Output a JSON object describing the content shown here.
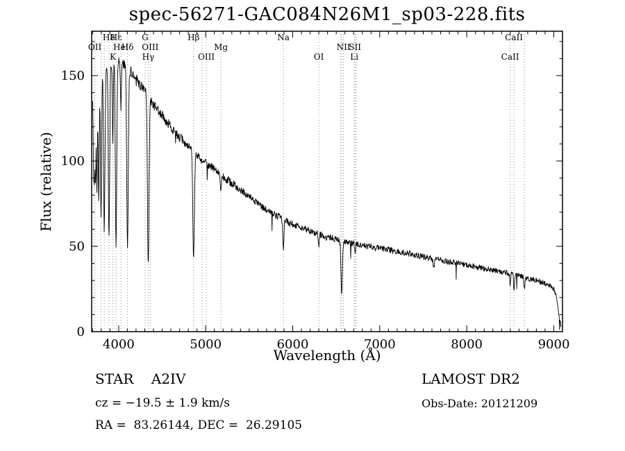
{
  "title": "spec-56271-GAC084N26M1_sp03-228.fits",
  "chart_data": {
    "type": "line",
    "title": "spec-56271-GAC084N26M1_sp03-228.fits",
    "xlabel": "Wavelength (Å)",
    "ylabel": "Flux (relative)",
    "xlim": [
      3690,
      9100
    ],
    "ylim": [
      0,
      176
    ],
    "xticks": [
      4000,
      5000,
      6000,
      7000,
      8000,
      9000
    ],
    "yticks": [
      0,
      50,
      100,
      150
    ],
    "x_minor_step": 100,
    "y_minor_step": 10,
    "grid": false,
    "legend": "none",
    "series_color": "#000000",
    "dotted_line_color": "#8a8a8a",
    "continuum_points": [
      [
        3700,
        140
      ],
      [
        3720,
        146
      ],
      [
        3740,
        150
      ],
      [
        3760,
        152
      ],
      [
        3780,
        153
      ],
      [
        3800,
        154
      ],
      [
        3830,
        155
      ],
      [
        3860,
        156
      ],
      [
        3900,
        157
      ],
      [
        3950,
        158
      ],
      [
        4000,
        158
      ],
      [
        4040,
        157
      ],
      [
        4080,
        156
      ],
      [
        4120,
        154
      ],
      [
        4160,
        151
      ],
      [
        4200,
        148
      ],
      [
        4250,
        144
      ],
      [
        4300,
        141
      ],
      [
        4350,
        137
      ],
      [
        4400,
        133
      ],
      [
        4450,
        130
      ],
      [
        4500,
        127
      ],
      [
        4550,
        123
      ],
      [
        4600,
        120
      ],
      [
        4650,
        117
      ],
      [
        4700,
        114
      ],
      [
        4750,
        111
      ],
      [
        4800,
        108
      ],
      [
        4850,
        106
      ],
      [
        4900,
        103
      ],
      [
        4950,
        101
      ],
      [
        5000,
        99
      ],
      [
        5050,
        97
      ],
      [
        5100,
        95
      ],
      [
        5150,
        93
      ],
      [
        5200,
        91
      ],
      [
        5250,
        89
      ],
      [
        5300,
        87
      ],
      [
        5350,
        85
      ],
      [
        5400,
        83
      ],
      [
        5450,
        81
      ],
      [
        5500,
        79
      ],
      [
        5550,
        77
      ],
      [
        5600,
        75
      ],
      [
        5650,
        73
      ],
      [
        5700,
        71
      ],
      [
        5750,
        70
      ],
      [
        5800,
        68
      ],
      [
        5850,
        67
      ],
      [
        5900,
        66
      ],
      [
        5950,
        64
      ],
      [
        6000,
        63
      ],
      [
        6050,
        62
      ],
      [
        6100,
        61
      ],
      [
        6150,
        60
      ],
      [
        6200,
        59
      ],
      [
        6250,
        58
      ],
      [
        6300,
        57
      ],
      [
        6350,
        56
      ],
      [
        6400,
        55
      ],
      [
        6450,
        55
      ],
      [
        6500,
        54
      ],
      [
        6550,
        53
      ],
      [
        6600,
        53
      ],
      [
        6650,
        52
      ],
      [
        6700,
        52
      ],
      [
        6750,
        51
      ],
      [
        6800,
        51
      ],
      [
        6850,
        50
      ],
      [
        6900,
        50
      ],
      [
        6950,
        49
      ],
      [
        7000,
        49
      ],
      [
        7100,
        48
      ],
      [
        7200,
        47
      ],
      [
        7300,
        46
      ],
      [
        7400,
        45
      ],
      [
        7500,
        44
      ],
      [
        7600,
        43
      ],
      [
        7700,
        42
      ],
      [
        7800,
        41
      ],
      [
        7900,
        40
      ],
      [
        8000,
        39
      ],
      [
        8100,
        38
      ],
      [
        8200,
        37
      ],
      [
        8300,
        36
      ],
      [
        8400,
        35
      ],
      [
        8500,
        34
      ],
      [
        8600,
        33
      ],
      [
        8700,
        31
      ],
      [
        8800,
        30
      ],
      [
        8900,
        28
      ],
      [
        8950,
        27
      ],
      [
        9000,
        25
      ],
      [
        9030,
        20
      ],
      [
        9060,
        10
      ],
      [
        9090,
        2
      ]
    ],
    "absorption_lines": [
      [
        3712,
        45,
        5
      ],
      [
        3722,
        50,
        5
      ],
      [
        3734,
        58,
        5
      ],
      [
        3750,
        68,
        6
      ],
      [
        3771,
        76,
        6
      ],
      [
        3798,
        86,
        7
      ],
      [
        3835,
        96,
        8
      ],
      [
        3889,
        102,
        8
      ],
      [
        3933,
        48,
        5
      ],
      [
        3970,
        108,
        8
      ],
      [
        4026,
        26,
        5
      ],
      [
        4102,
        107,
        9
      ],
      [
        4340,
        100,
        9
      ],
      [
        4861,
        62,
        9
      ],
      [
        5175,
        9,
        6
      ],
      [
        5893,
        18,
        7
      ],
      [
        6300,
        7,
        5
      ],
      [
        6563,
        30,
        8
      ],
      [
        6717,
        6,
        5
      ],
      [
        7620,
        6,
        8
      ],
      [
        8498,
        6,
        5
      ],
      [
        8542,
        9,
        5
      ],
      [
        8662,
        7,
        5
      ]
    ],
    "noise": {
      "seed": 42,
      "base_amplitude": 1.1,
      "flux_scaled_amplitude": 2.2,
      "spike_probability": 0.012,
      "spike_max": 11
    },
    "line_markers": [
      {
        "label": "H8",
        "wavelength": 3889,
        "row": 0
      },
      {
        "label": "Hε",
        "wavelength": 3970,
        "row": 0
      },
      {
        "label": "G",
        "wavelength": 4304,
        "row": 0
      },
      {
        "label": "Hβ",
        "wavelength": 4861,
        "row": 0
      },
      {
        "label": "Na",
        "wavelength": 5893,
        "row": 0
      },
      {
        "label": "CaII",
        "wavelength": 8542,
        "row": 0
      },
      {
        "label": "OII",
        "wavelength": 3727,
        "row": 1
      },
      {
        "label": "HeI",
        "wavelength": 4026,
        "row": 1
      },
      {
        "label": "Hδ",
        "wavelength": 4102,
        "row": 1
      },
      {
        "label": "OIII",
        "wavelength": 4363,
        "row": 1
      },
      {
        "label": "Mg",
        "wavelength": 5175,
        "row": 1
      },
      {
        "label": "NII",
        "wavelength": 6583,
        "row": 1
      },
      {
        "label": "SII",
        "wavelength": 6716,
        "row": 1
      },
      {
        "label": "K",
        "wavelength": 3933,
        "row": 2
      },
      {
        "label": "Hγ",
        "wavelength": 4340,
        "row": 2
      },
      {
        "label": "OIII",
        "wavelength": 5007,
        "row": 2
      },
      {
        "label": "OI",
        "wavelength": 6300,
        "row": 2
      },
      {
        "label": "Li",
        "wavelength": 6708,
        "row": 2
      },
      {
        "label": "CaII",
        "wavelength": 8498,
        "row": 2
      }
    ],
    "extra_dotted_lines": [
      3798,
      3835,
      4959,
      6548,
      6563,
      6731,
      8662
    ]
  },
  "annotations": {
    "object_class": "STAR    A2IV",
    "survey": "LAMOST DR2",
    "cz": "cz = −19.5 ± 1.9 km/s",
    "obs_date": "Obs-Date: 20121209",
    "ra_dec": "RA =  83.26144, DEC =  26.29105"
  }
}
